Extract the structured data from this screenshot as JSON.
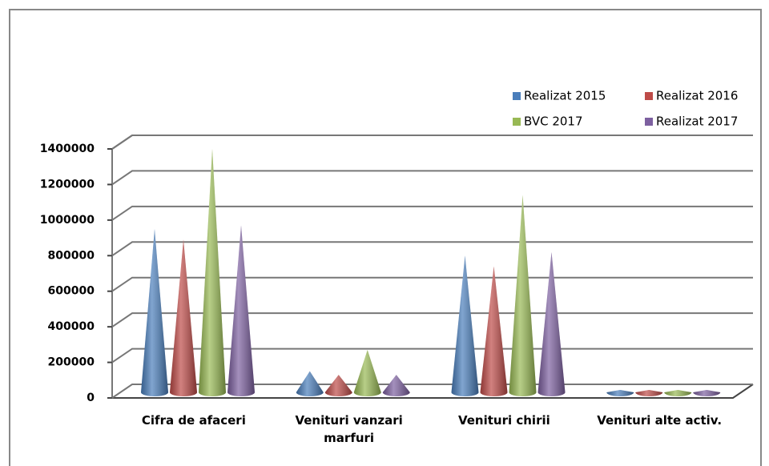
{
  "chart_data": {
    "type": "cone",
    "categories": [
      "Cifra de afaceri",
      "Venituri vanzari marfuri",
      "Venituri chirii",
      "Venituri alte activ."
    ],
    "series": [
      {
        "name": "Realizat 2015",
        "color": "#4a7ebb",
        "values": [
          950000,
          150000,
          800000,
          5000
        ]
      },
      {
        "name": "Realizat 2016",
        "color": "#be4b48",
        "values": [
          890000,
          130000,
          740000,
          5000
        ]
      },
      {
        "name": "BVC 2017",
        "color": "#98b954",
        "values": [
          1400000,
          270000,
          1140000,
          5000
        ]
      },
      {
        "name": "Realizat 2017",
        "color": "#7d60a0",
        "values": [
          970000,
          130000,
          820000,
          5000
        ]
      }
    ],
    "ylim": [
      0,
      1400000
    ],
    "yticks": [
      0,
      200000,
      400000,
      600000,
      800000,
      1000000,
      1200000,
      1400000
    ],
    "grid": true,
    "legend": "top-right"
  }
}
